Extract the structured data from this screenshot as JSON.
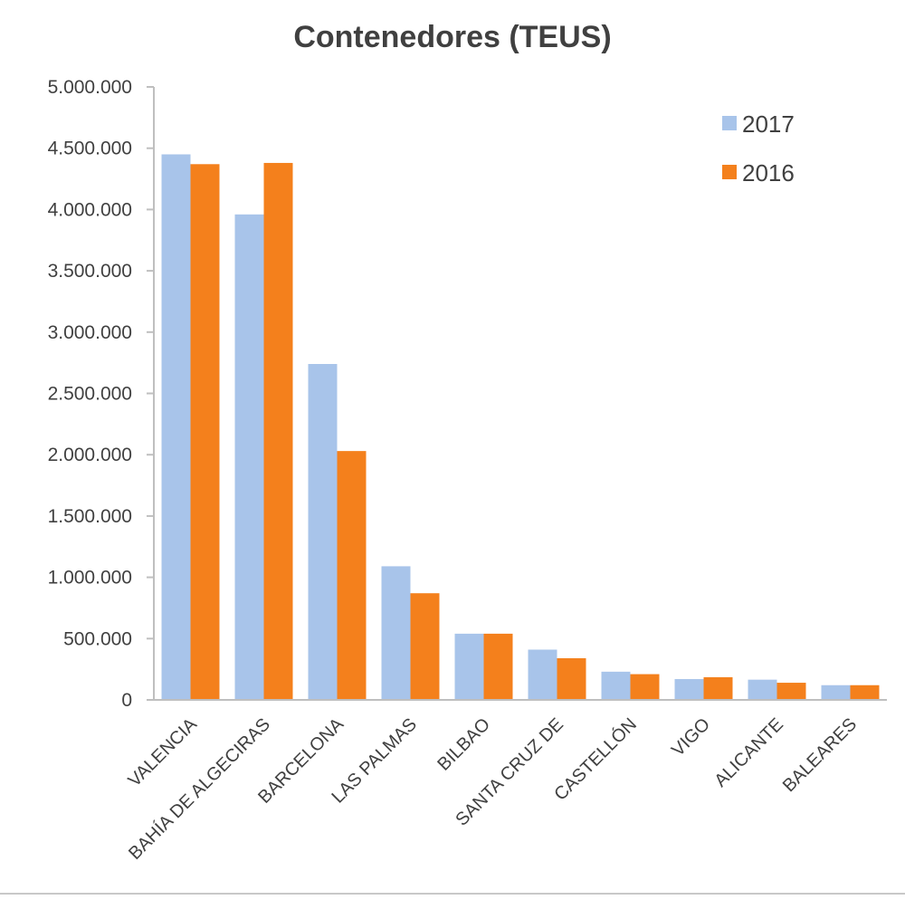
{
  "chart_data": {
    "type": "bar",
    "title": "Contenedores (TEUS)",
    "categories": [
      "VALENCIA",
      "BAHÍA DE ALGECIRAS",
      "BARCELONA",
      "LAS PALMAS",
      "BILBAO",
      "SANTA CRUZ DE",
      "CASTELLÓN",
      "VIGO",
      "ALICANTE",
      "BALEARES"
    ],
    "series": [
      {
        "name": "2017",
        "color": "#a8c4ea",
        "values": [
          4450000,
          3960000,
          2740000,
          1090000,
          540000,
          410000,
          230000,
          170000,
          165000,
          120000
        ]
      },
      {
        "name": "2016",
        "color": "#f4801c",
        "values": [
          4370000,
          4380000,
          2030000,
          870000,
          540000,
          340000,
          210000,
          185000,
          140000,
          120000
        ]
      }
    ],
    "ylim": [
      0,
      5000000
    ],
    "yticks": [
      "0",
      "500.000",
      "1.000.000",
      "1.500.000",
      "2.000.000",
      "2.500.000",
      "3.000.000",
      "3.500.000",
      "4.000.000",
      "4.500.000",
      "5.000.000"
    ],
    "grid": false,
    "legend": "top-right"
  }
}
